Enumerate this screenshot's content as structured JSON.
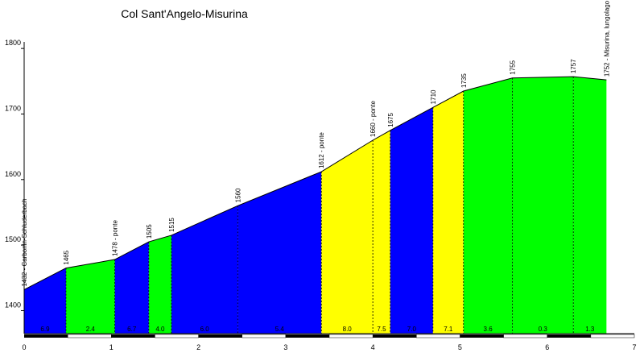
{
  "chart_data": {
    "type": "area",
    "title": "Col Sant'Angelo-Misurina",
    "xlim": [
      0,
      7
    ],
    "ylim": [
      1360,
      1810
    ],
    "x_ticks": [
      "0",
      "1",
      "2",
      "3",
      "4",
      "5",
      "6",
      "7"
    ],
    "y_ticks": [
      "1400",
      "1500",
      "1600",
      "1700",
      "1800"
    ],
    "profile": [
      {
        "x": 0.0,
        "y": 1432
      },
      {
        "x": 0.48,
        "y": 1465
      },
      {
        "x": 1.04,
        "y": 1478
      },
      {
        "x": 1.43,
        "y": 1505
      },
      {
        "x": 1.69,
        "y": 1515
      },
      {
        "x": 2.45,
        "y": 1560
      },
      {
        "x": 3.41,
        "y": 1612
      },
      {
        "x": 4.0,
        "y": 1660
      },
      {
        "x": 4.2,
        "y": 1675
      },
      {
        "x": 4.69,
        "y": 1710
      },
      {
        "x": 5.04,
        "y": 1735
      },
      {
        "x": 5.6,
        "y": 1755
      },
      {
        "x": 6.3,
        "y": 1757
      },
      {
        "x": 6.68,
        "y": 1752
      }
    ],
    "point_labels": [
      {
        "x": 0.0,
        "y": 1432,
        "text": "1432 - Carbonin-Schluderbach"
      },
      {
        "x": 0.48,
        "y": 1465,
        "text": "1465"
      },
      {
        "x": 1.04,
        "y": 1478,
        "text": "1478 - ponte"
      },
      {
        "x": 1.43,
        "y": 1505,
        "text": "1505"
      },
      {
        "x": 1.69,
        "y": 1515,
        "text": "1515"
      },
      {
        "x": 2.45,
        "y": 1560,
        "text": "1560"
      },
      {
        "x": 3.41,
        "y": 1612,
        "text": "1612 - ponte"
      },
      {
        "x": 4.0,
        "y": 1660,
        "text": "1660 - ponte"
      },
      {
        "x": 4.2,
        "y": 1675,
        "text": "1675"
      },
      {
        "x": 4.69,
        "y": 1710,
        "text": "1710"
      },
      {
        "x": 5.04,
        "y": 1735,
        "text": "1735"
      },
      {
        "x": 5.6,
        "y": 1755,
        "text": "1755"
      },
      {
        "x": 6.3,
        "y": 1757,
        "text": "1757"
      },
      {
        "x": 6.68,
        "y": 1752,
        "text": "1752 - Misurina, lungolago"
      }
    ],
    "segments": [
      {
        "x0": 0.0,
        "x1": 0.48,
        "color": "#0000ff",
        "gradient": "6.9"
      },
      {
        "x0": 0.48,
        "x1": 1.04,
        "color": "#00ff00",
        "gradient": "2.4"
      },
      {
        "x0": 1.04,
        "x1": 1.43,
        "color": "#0000ff",
        "gradient": "6.7"
      },
      {
        "x0": 1.43,
        "x1": 1.69,
        "color": "#00ff00",
        "gradient": "4.0"
      },
      {
        "x0": 1.69,
        "x1": 2.45,
        "color": "#0000ff",
        "gradient": "6.0"
      },
      {
        "x0": 2.45,
        "x1": 3.41,
        "color": "#0000ff",
        "gradient": "5.4"
      },
      {
        "x0": 3.41,
        "x1": 4.0,
        "color": "#ffff00",
        "gradient": "8.0"
      },
      {
        "x0": 4.0,
        "x1": 4.2,
        "color": "#ffff00",
        "gradient": "7.5"
      },
      {
        "x0": 4.2,
        "x1": 4.69,
        "color": "#0000ff",
        "gradient": "7.0"
      },
      {
        "x0": 4.69,
        "x1": 5.04,
        "color": "#ffff00",
        "gradient": "7.1"
      },
      {
        "x0": 5.04,
        "x1": 5.6,
        "color": "#00ff00",
        "gradient": "3.6"
      },
      {
        "x0": 5.6,
        "x1": 6.3,
        "color": "#00ff00",
        "gradient": "0.3"
      },
      {
        "x0": 6.3,
        "x1": 6.68,
        "color": "#00ff00",
        "gradient": "1.3"
      }
    ],
    "grid": false,
    "legend": "none"
  }
}
